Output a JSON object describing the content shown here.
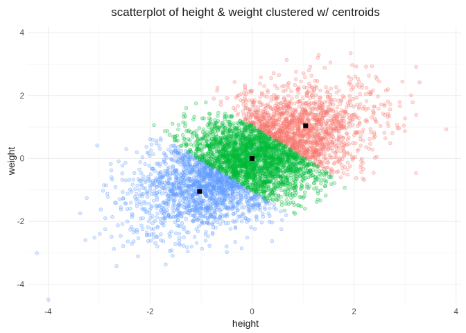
{
  "chart_data": {
    "type": "scatter",
    "title": "scatterplot of height & weight clustered w/ centroids",
    "xlabel": "height",
    "ylabel": "weight",
    "xlim": [
      -4.4,
      4.1
    ],
    "ylim": [
      -4.6,
      4.2
    ],
    "x_ticks": [
      -4,
      -2,
      0,
      2,
      4
    ],
    "y_ticks": [
      -4,
      -2,
      0,
      2,
      4
    ],
    "x_tick_labels": [
      "-4",
      "-2",
      "0",
      "2",
      "4"
    ],
    "y_tick_labels": [
      "-4",
      "-2",
      "0",
      "2",
      "4"
    ],
    "grid": true,
    "legend": "none",
    "series": [
      {
        "color": "#F8766D",
        "centroid": [
          1.05,
          1.04
        ],
        "sd": [
          0.65,
          0.65
        ],
        "approx_points": 6000
      },
      {
        "color": "#00BA38",
        "centroid": [
          0.0,
          0.0
        ],
        "sd": [
          0.75,
          0.6
        ],
        "approx_points": 6000
      },
      {
        "color": "#619CFF",
        "centroid": [
          -1.03,
          -1.05
        ],
        "sd": [
          0.65,
          0.65
        ],
        "approx_points": 6000
      }
    ],
    "centroids": [
      {
        "x": 1.05,
        "y": 1.04
      },
      {
        "x": 0.0,
        "y": 0.0
      },
      {
        "x": -1.03,
        "y": -1.05
      }
    ],
    "centroid_color": "#000000"
  }
}
